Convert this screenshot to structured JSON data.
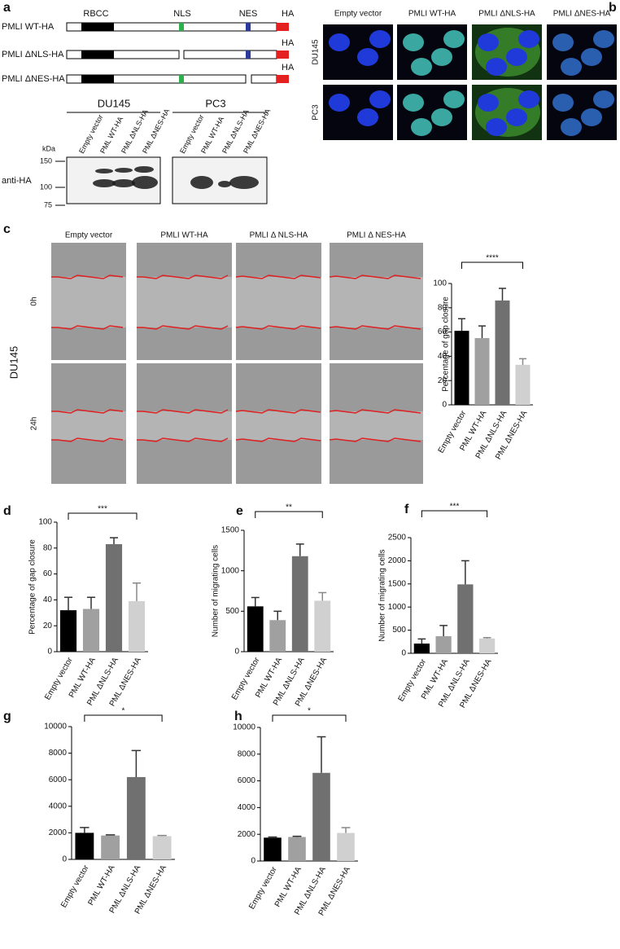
{
  "panel_letters": [
    "a",
    "b",
    "c",
    "d",
    "e",
    "f",
    "g",
    "h"
  ],
  "panel_a": {
    "domain_labels": [
      "RBCC",
      "NLS",
      "NES",
      "HA"
    ],
    "constructs": [
      {
        "name": "PMLI WT-HA"
      },
      {
        "name": "PMLI ΔNLS-HA",
        "tag": "HA"
      },
      {
        "name": "PMLI ΔNES-HA",
        "tag": "HA"
      }
    ],
    "blot": {
      "cell_lines": [
        "DU145",
        "PC3"
      ],
      "lanes": [
        "Empty vector",
        "PML WT-HA",
        "PML ΔNLS-HA",
        "PML ΔNES-HA",
        "Empty vector",
        "PML WT-HA",
        "PML ΔNLS-HA",
        "PML ΔNES-HA"
      ],
      "unit": "kDa",
      "markers": [
        "150",
        "100",
        "75"
      ],
      "antibody": "anti-HA"
    }
  },
  "panel_b": {
    "columns": [
      "Empty vector",
      "PMLI WT-HA",
      "PMLI ΔNLS-HA",
      "PMLI ΔNES-HA"
    ],
    "rows": [
      "DU145",
      "PC3"
    ]
  },
  "panel_c": {
    "columns": [
      "Empty vector",
      "PMLI WT-HA",
      "PMLI Δ NLS-HA",
      "PMLI Δ NES-HA"
    ],
    "rows": [
      "0h",
      "24h"
    ],
    "cell_line": "DU145"
  },
  "chart_data": [
    {
      "type": "bar",
      "y_label": "Percentage of gap closure",
      "annotation": "****",
      "categories": [
        "Empty vector",
        "PML WT-HA",
        "PML ΔNLS-HA",
        "PML ΔNES-HA"
      ],
      "values": [
        61,
        55,
        86,
        33
      ],
      "errors": [
        10,
        10,
        10,
        5
      ],
      "colors": [
        "#000000",
        "#a0a0a0",
        "#707070",
        "#d0d0d0"
      ],
      "ylim": [
        0,
        100
      ],
      "yticks": [
        0,
        20,
        40,
        60,
        80,
        100
      ]
    },
    {
      "type": "bar",
      "y_label": "Percentage of gap closure",
      "annotation": "***",
      "categories": [
        "Empty vector",
        "PML WT-HA",
        "PML ΔNLS-HA",
        "PML ΔNES-HA"
      ],
      "values": [
        32,
        33,
        83,
        39
      ],
      "errors": [
        10,
        9,
        5,
        14
      ],
      "colors": [
        "#000000",
        "#a0a0a0",
        "#707070",
        "#d0d0d0"
      ],
      "ylim": [
        0,
        100
      ],
      "yticks": [
        0,
        20,
        40,
        60,
        80,
        100
      ]
    },
    {
      "type": "bar",
      "y_label": "Number of migrating cells",
      "annotation": "**",
      "categories": [
        "Empty vector",
        "PML WT-HA",
        "PML ΔNLS-HA",
        "PML ΔNES-HA"
      ],
      "values": [
        560,
        390,
        1180,
        630
      ],
      "errors": [
        110,
        110,
        150,
        100
      ],
      "colors": [
        "#000000",
        "#a0a0a0",
        "#707070",
        "#d0d0d0"
      ],
      "ylim": [
        0,
        1500
      ],
      "yticks": [
        0,
        500,
        1000,
        1500
      ]
    },
    {
      "type": "bar",
      "y_label": "Number of migrating cells",
      "annotation": "***",
      "categories": [
        "Empty vector",
        "PML WT-HA",
        "PML ΔNLS-HA",
        "PML ΔNES-HA"
      ],
      "values": [
        210,
        370,
        1490,
        320
      ],
      "errors": [
        100,
        230,
        510,
        20
      ],
      "colors": [
        "#000000",
        "#a0a0a0",
        "#707070",
        "#d0d0d0"
      ],
      "ylim": [
        0,
        2500
      ],
      "yticks": [
        0,
        500,
        1000,
        1500,
        2000,
        2500
      ]
    },
    {
      "type": "bar",
      "annotation": "*",
      "categories": [
        "Empty vector",
        "PML WT-HA",
        "PML ΔNLS-HA",
        "PML ΔNES-HA"
      ],
      "values": [
        2000,
        1800,
        6200,
        1750
      ],
      "errors": [
        400,
        50,
        2000,
        50
      ],
      "colors": [
        "#000000",
        "#a0a0a0",
        "#707070",
        "#d0d0d0"
      ],
      "ylim": [
        0,
        10000
      ],
      "yticks": [
        0,
        2000,
        4000,
        6000,
        8000,
        10000
      ]
    },
    {
      "type": "bar",
      "annotation": "*",
      "categories": [
        "Empty vector",
        "PML WT-HA",
        "PML ΔNLS-HA",
        "PML ΔNES-HA"
      ],
      "values": [
        1750,
        1800,
        6600,
        2100
      ],
      "errors": [
        50,
        50,
        2700,
        400
      ],
      "colors": [
        "#000000",
        "#a0a0a0",
        "#707070",
        "#d0d0d0"
      ],
      "ylim": [
        0,
        10000
      ],
      "yticks": [
        0,
        2000,
        4000,
        6000,
        8000,
        10000
      ]
    }
  ]
}
